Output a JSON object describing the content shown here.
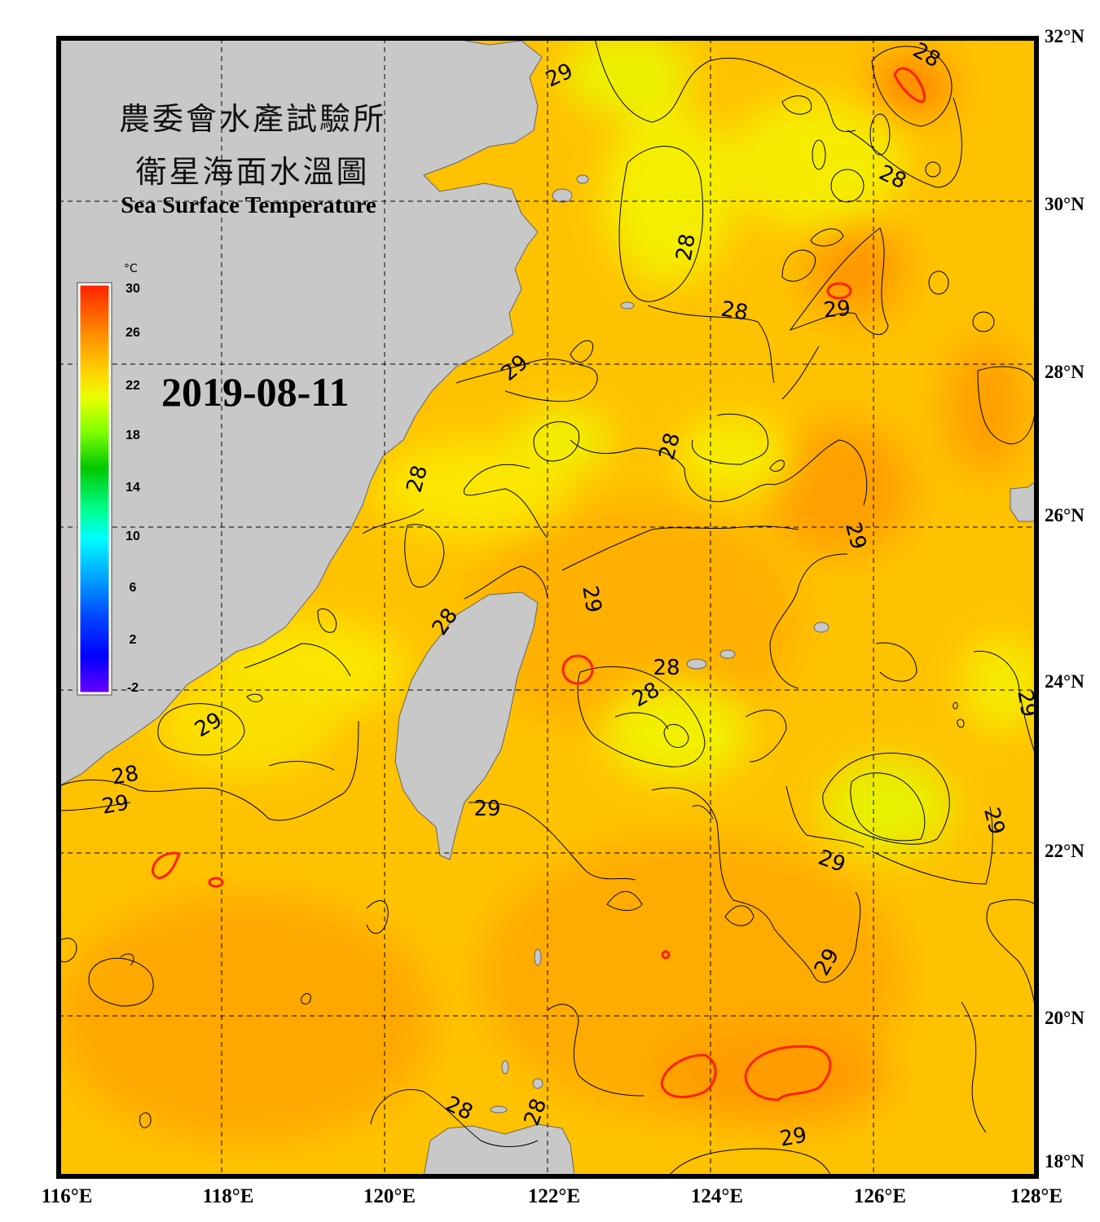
{
  "title": {
    "line1": "農委會水產試驗所",
    "line2": "衛星海面水溫圖",
    "english": "Sea Surface Temperature"
  },
  "date": "2019-08-11",
  "colorbar": {
    "unit": "°C",
    "ticks": [
      "30",
      "26",
      "22",
      "18",
      "14",
      "10",
      "6",
      "2",
      "-2"
    ],
    "colors": [
      "#ff2000",
      "#ff8c00",
      "#ffd700",
      "#e8ff00",
      "#7fff00",
      "#00c800",
      "#00ff8c",
      "#00ffff",
      "#00a0ff",
      "#0040ff",
      "#0000ff",
      "#6a00ff"
    ]
  },
  "axes": {
    "lon_labels": [
      "116°E",
      "118°E",
      "120°E",
      "122°E",
      "124°E",
      "126°E",
      "128°E"
    ],
    "lat_labels": [
      "32°N",
      "30°N",
      "28°N",
      "26°N",
      "24°N",
      "22°N",
      "20°N",
      "18°N"
    ]
  },
  "contour_labels": [
    "29",
    "28",
    "28",
    "28",
    "29",
    "29",
    "28",
    "28",
    "28",
    "29",
    "29",
    "28",
    "28",
    "28",
    "29",
    "29",
    "28",
    "29",
    "29",
    "29",
    "29",
    "29",
    "28",
    "28",
    "29",
    "29",
    "28"
  ],
  "colors": {
    "sea_base": "#ffc800",
    "sea_warm": "#ffa500",
    "sea_cool": "#f6f000",
    "land": "#c8c8c8",
    "frame": "#000000",
    "contour": "#000000",
    "contour_30": "#ff2000"
  }
}
